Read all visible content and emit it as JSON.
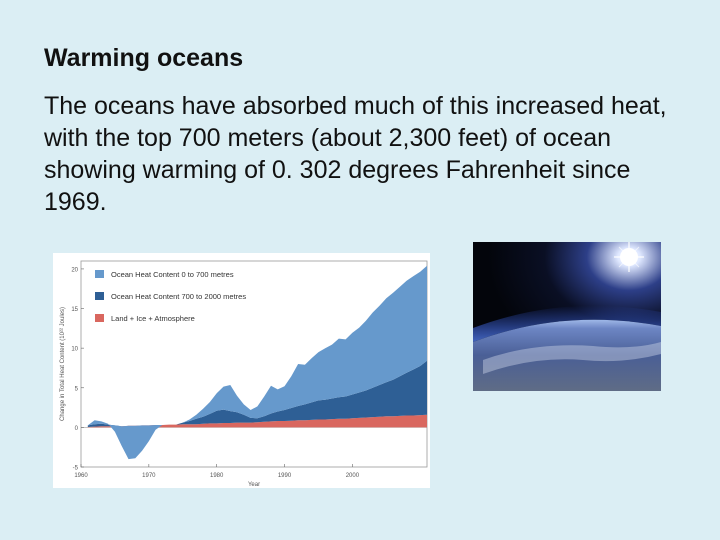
{
  "slide": {
    "title": "Warming oceans",
    "body": "The oceans have absorbed much of this increased heat, with the top 700 meters (about 2,300 feet) of ocean showing warming of 0. 302 degrees Fahrenheit since 1969."
  },
  "photo": {
    "subject": "earth-horizon-from-space",
    "colors": {
      "space": "#05070f",
      "atmosphere": "#4a6fd0",
      "sun": "#ffffff"
    }
  },
  "chart_data": {
    "type": "area",
    "xlabel": "Year",
    "ylabel": "Change in Total Heat Content (10²² Joules)",
    "xlim": [
      1960,
      2011
    ],
    "ylim": [
      -5,
      21
    ],
    "x_ticks": [
      {
        "value": 1960,
        "label": "1960"
      },
      {
        "value": 1970,
        "label": "1970"
      },
      {
        "value": 1980,
        "label": "1980"
      },
      {
        "value": 1990,
        "label": "1990"
      },
      {
        "value": 2000,
        "label": "2000"
      }
    ],
    "y_ticks": [
      {
        "value": -5,
        "label": "-5"
      },
      {
        "value": 0,
        "label": "0"
      },
      {
        "value": 5,
        "label": "5"
      },
      {
        "value": 10,
        "label": "10"
      },
      {
        "value": 15,
        "label": "15"
      },
      {
        "value": 20,
        "label": "20"
      }
    ],
    "legend_position": "top-left",
    "stacked": true,
    "x": [
      1961,
      1962,
      1963,
      1964,
      1965,
      1966,
      1967,
      1968,
      1969,
      1970,
      1971,
      1972,
      1973,
      1974,
      1975,
      1976,
      1977,
      1978,
      1979,
      1980,
      1981,
      1982,
      1983,
      1984,
      1985,
      1986,
      1987,
      1988,
      1989,
      1990,
      1991,
      1992,
      1993,
      1994,
      1995,
      1996,
      1997,
      1998,
      1999,
      2000,
      2001,
      2002,
      2003,
      2004,
      2005,
      2006,
      2007,
      2008,
      2009,
      2010,
      2011
    ],
    "series": [
      {
        "name": "Land + Ice + Atmosphere",
        "color": "#d9675f",
        "values": [
          0.05,
          0.1,
          0.15,
          0.15,
          0.15,
          0.15,
          0.2,
          0.2,
          0.25,
          0.25,
          0.3,
          0.3,
          0.35,
          0.35,
          0.4,
          0.4,
          0.4,
          0.45,
          0.5,
          0.5,
          0.55,
          0.55,
          0.6,
          0.6,
          0.6,
          0.65,
          0.7,
          0.75,
          0.8,
          0.8,
          0.85,
          0.9,
          0.9,
          0.95,
          1.0,
          1.0,
          1.05,
          1.1,
          1.1,
          1.15,
          1.2,
          1.25,
          1.3,
          1.35,
          1.4,
          1.4,
          1.45,
          1.5,
          1.5,
          1.55,
          1.6
        ]
      },
      {
        "name": "Ocean Heat Content 700 to 2000 metres",
        "color": "#2e5f95",
        "values": [
          0.2,
          0.3,
          0.3,
          0.2,
          0.1,
          0,
          0,
          0,
          0,
          0,
          0,
          0,
          0,
          0,
          0.2,
          0.4,
          0.7,
          0.9,
          1.2,
          1.6,
          1.7,
          1.5,
          1.3,
          1.0,
          0.6,
          0.5,
          0.7,
          1.0,
          1.2,
          1.4,
          1.6,
          1.8,
          2.0,
          2.2,
          2.4,
          2.5,
          2.6,
          2.7,
          2.8,
          3.0,
          3.2,
          3.4,
          3.7,
          4.0,
          4.3,
          4.6,
          5.0,
          5.4,
          5.8,
          6.2,
          6.8
        ]
      },
      {
        "name": "Ocean Heat Content 0 to 700 metres",
        "color": "#6699cc",
        "values": [
          0,
          0.5,
          0.3,
          0.1,
          -0.8,
          -2.5,
          -4.2,
          -4.1,
          -3.2,
          -2.0,
          -0.6,
          0,
          0,
          0,
          0,
          0.2,
          0.5,
          1.0,
          1.5,
          2.2,
          2.9,
          3.3,
          2.1,
          1.3,
          1.0,
          1.5,
          2.5,
          3.5,
          2.8,
          3.0,
          4.0,
          5.3,
          5.0,
          5.6,
          6.1,
          6.5,
          6.8,
          7.4,
          7.2,
          7.8,
          8.2,
          8.8,
          9.5,
          10.0,
          10.6,
          11.0,
          11.3,
          11.6,
          11.8,
          11.9,
          12.0
        ]
      }
    ]
  }
}
